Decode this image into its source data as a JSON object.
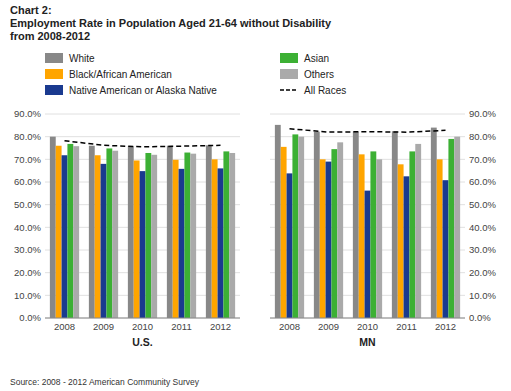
{
  "chart_data": [
    {
      "type": "bar",
      "title": [
        "Chart 2:",
        "Employment Rate in Population Aged 21-64 without Disability",
        "from 2008-2012"
      ],
      "annotations": [
        "Source: 2008 - 2012 American Community Survey"
      ],
      "x_label": "U.S.",
      "categories": [
        "2008",
        "2009",
        "2010",
        "2011",
        "2012"
      ],
      "series": [
        {
          "name": "White",
          "color": "#888888",
          "values": [
            0.8,
            0.76,
            0.758,
            0.76,
            0.762
          ]
        },
        {
          "name": "Black/African American",
          "color": "#FFA500",
          "values": [
            0.76,
            0.718,
            0.695,
            0.698,
            0.7
          ]
        },
        {
          "name": "Native American or Alaska Native",
          "color": "#1a3a8f",
          "values": [
            0.718,
            0.68,
            0.648,
            0.658,
            0.66
          ]
        },
        {
          "name": "Asian",
          "color": "#3cb034",
          "values": [
            0.768,
            0.748,
            0.728,
            0.73,
            0.735
          ]
        },
        {
          "name": "Others",
          "color": "#aaaaaa",
          "values": [
            0.758,
            0.738,
            0.72,
            0.725,
            0.728
          ]
        },
        {
          "name": "All Races",
          "color": "#000000",
          "type": "line",
          "line_style": "dashed",
          "values": [
            0.782,
            0.762,
            0.755,
            0.758,
            0.762
          ]
        }
      ],
      "ylim": [
        0.0,
        0.9
      ],
      "yticks": [
        {
          "value": 0.0,
          "label": "0.0%"
        },
        {
          "value": 0.1,
          "label": "10.0%"
        },
        {
          "value": 0.2,
          "label": "20.0%"
        },
        {
          "value": 0.3,
          "label": "30.0%"
        },
        {
          "value": 0.4,
          "label": "40.0%"
        },
        {
          "value": 0.5,
          "label": "50.0%"
        },
        {
          "value": 0.6,
          "label": "60.0%"
        },
        {
          "value": 0.7,
          "label": "70.0%"
        },
        {
          "value": 0.8,
          "label": "80.0%"
        },
        {
          "value": 0.9,
          "label": "90.0%"
        }
      ],
      "grid": true,
      "legend": "top"
    },
    {
      "type": "bar",
      "x_label": "MN",
      "categories": [
        "2008",
        "2009",
        "2010",
        "2011",
        "2012"
      ],
      "series": [
        {
          "name": "White",
          "color": "#888888",
          "values": [
            0.852,
            0.822,
            0.822,
            0.824,
            0.84
          ]
        },
        {
          "name": "Black/African American",
          "color": "#FFA500",
          "values": [
            0.755,
            0.7,
            0.722,
            0.678,
            0.7
          ]
        },
        {
          "name": "Native American or Alaska Native",
          "color": "#1a3a8f",
          "values": [
            0.638,
            0.69,
            0.562,
            0.625,
            0.608
          ]
        },
        {
          "name": "Asian",
          "color": "#3cb034",
          "values": [
            0.81,
            0.745,
            0.735,
            0.735,
            0.79
          ]
        },
        {
          "name": "Others",
          "color": "#aaaaaa",
          "values": [
            0.8,
            0.775,
            0.7,
            0.768,
            0.8
          ]
        },
        {
          "name": "All Races",
          "color": "#000000",
          "type": "line",
          "line_style": "dashed",
          "values": [
            0.835,
            0.82,
            0.822,
            0.82,
            0.828
          ]
        }
      ],
      "ylim": [
        0.0,
        0.9
      ],
      "yticks": [
        {
          "value": 0.0,
          "label": "0.0%"
        },
        {
          "value": 0.1,
          "label": "10.0%"
        },
        {
          "value": 0.2,
          "label": "20.0%"
        },
        {
          "value": 0.3,
          "label": "30.0%"
        },
        {
          "value": 0.4,
          "label": "40.0%"
        },
        {
          "value": 0.5,
          "label": "50.0%"
        },
        {
          "value": 0.6,
          "label": "60.0%"
        },
        {
          "value": 0.7,
          "label": "70.0%"
        },
        {
          "value": 0.8,
          "label": "80.0%"
        },
        {
          "value": 0.9,
          "label": "90.0%"
        }
      ],
      "grid": true
    }
  ]
}
